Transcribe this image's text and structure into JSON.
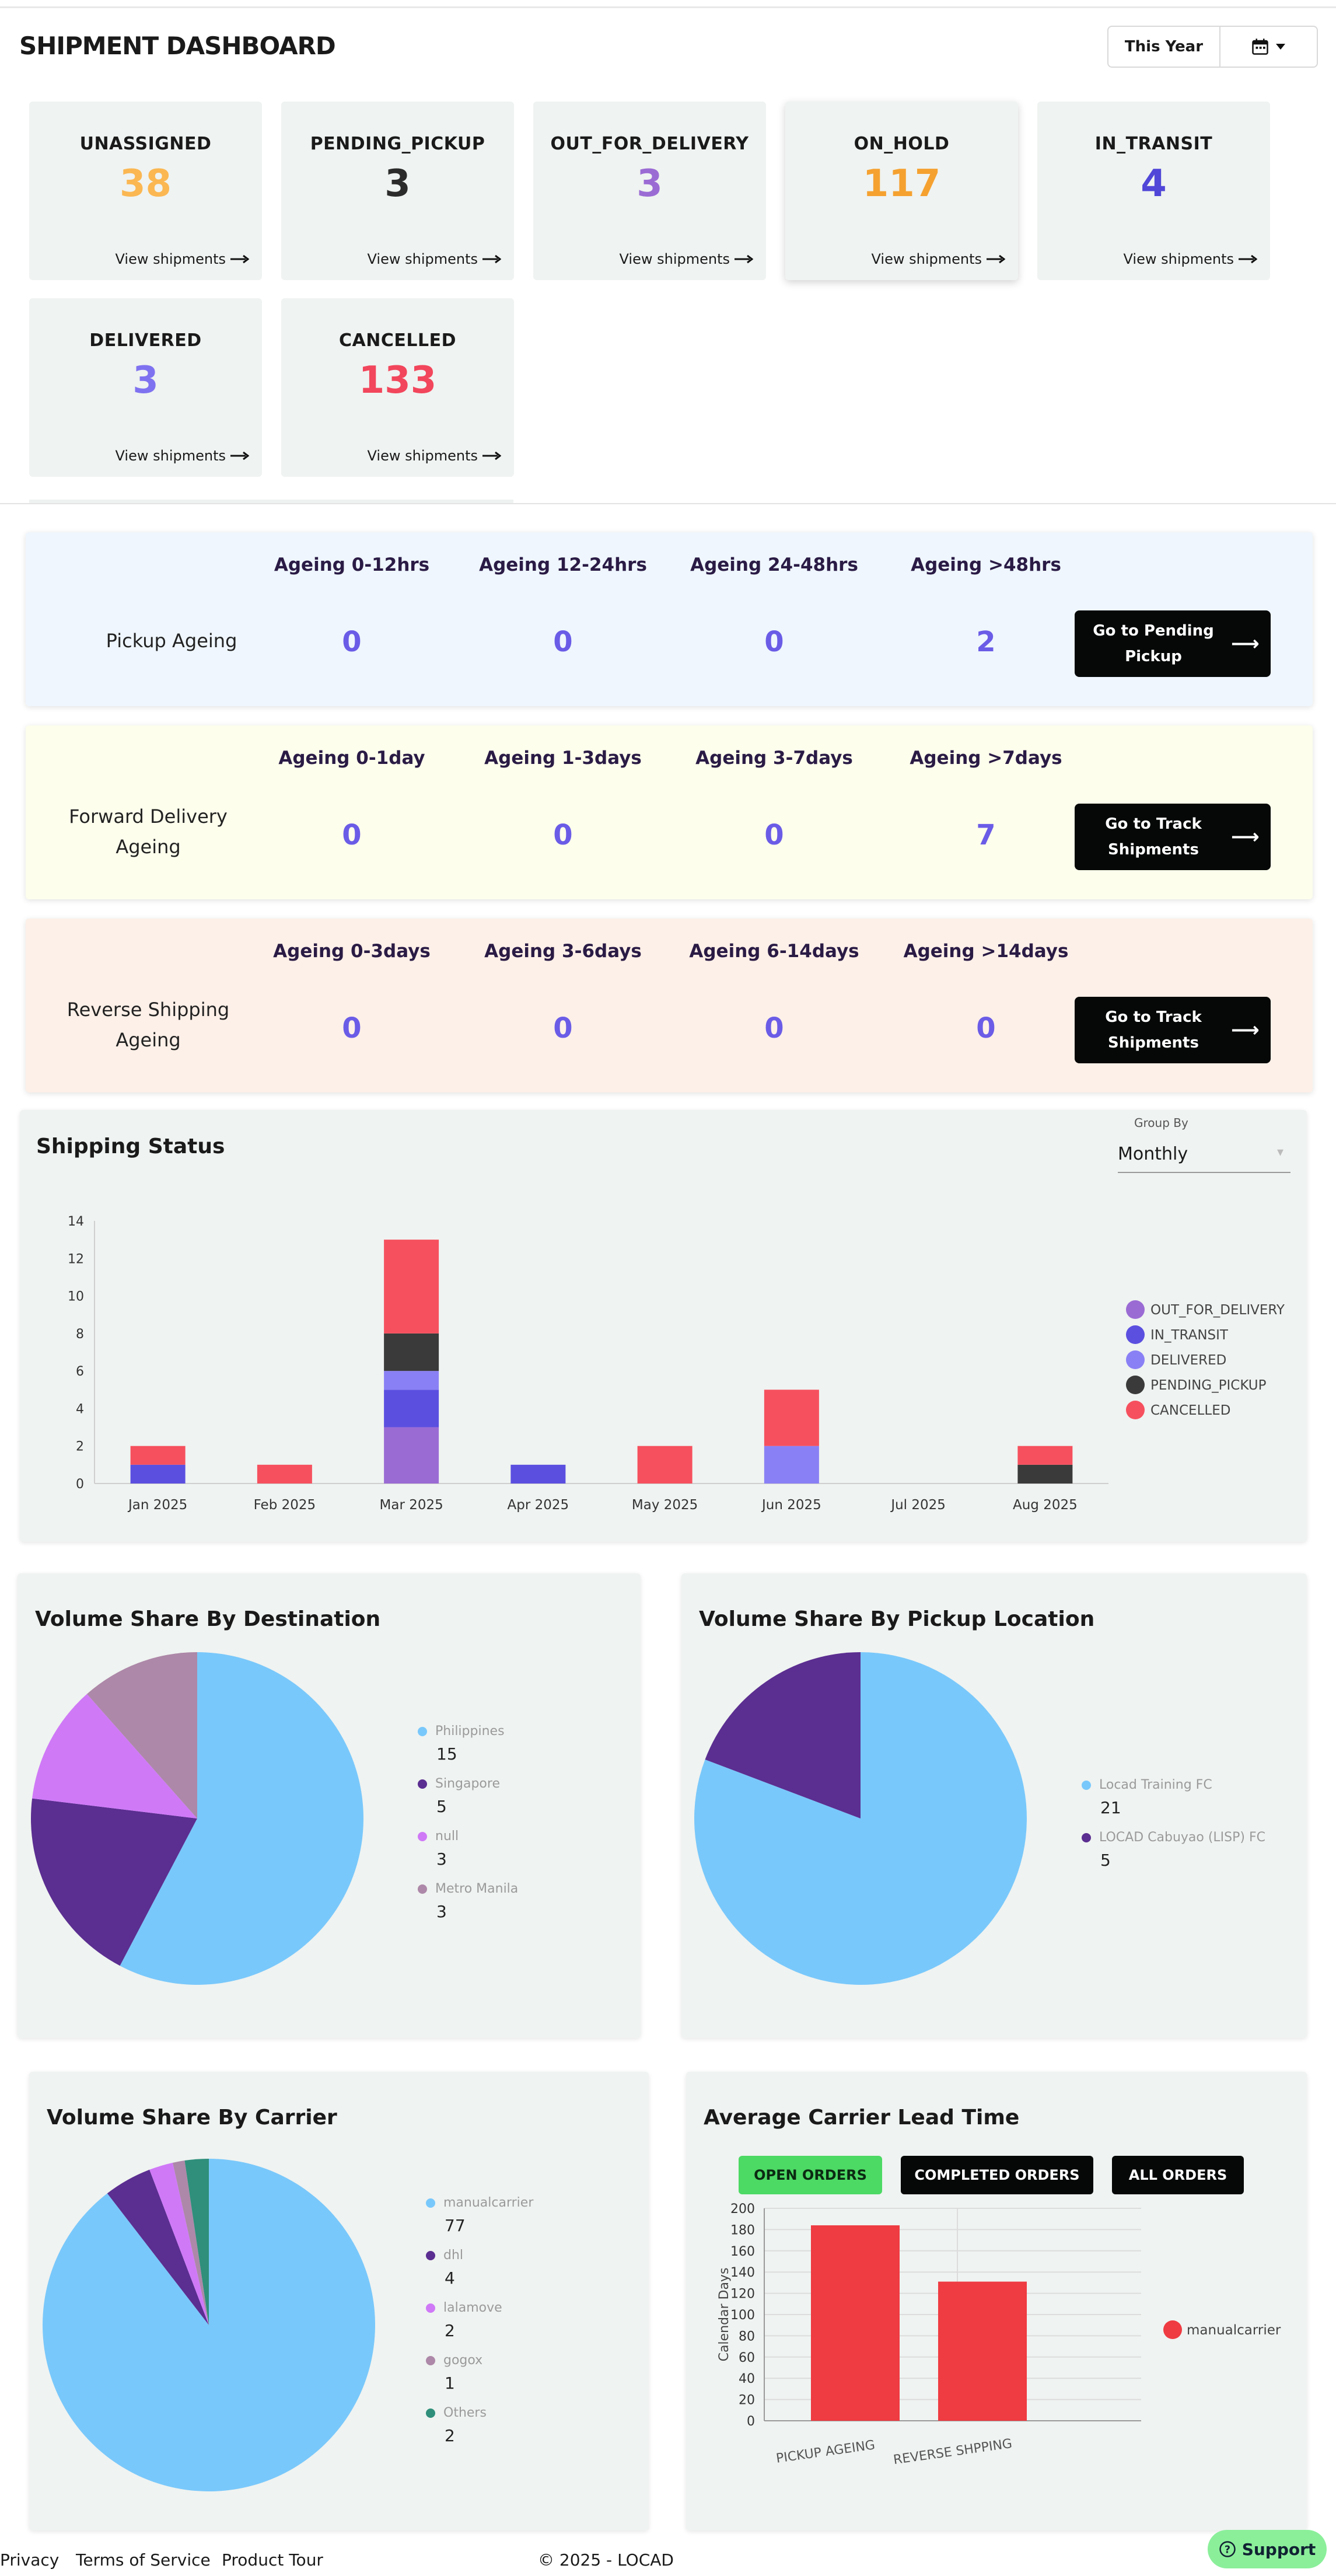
{
  "header": {
    "title": "SHIPMENT DASHBOARD",
    "year_label": "This Year",
    "calendar_icon": "calendar-icon",
    "chevron_icon": "chevron-down-icon"
  },
  "status_cards": [
    {
      "label": "UNASSIGNED",
      "value": "38",
      "color": "#fbb752",
      "link": "View shipments"
    },
    {
      "label": "PENDING_PICKUP",
      "value": "3",
      "color": "#2b2b2b",
      "link": "View shipments"
    },
    {
      "label": "OUT_FOR_DELIVERY",
      "value": "3",
      "color": "#9b6bd4",
      "link": "View shipments"
    },
    {
      "label": "ON_HOLD",
      "value": "117",
      "color": "#f5a130",
      "link": "View shipments"
    },
    {
      "label": "IN_TRANSIT",
      "value": "4",
      "color": "#5046d8",
      "link": "View shipments"
    },
    {
      "label": "DELIVERED",
      "value": "3",
      "color": "#7f72f0",
      "link": "View shipments"
    },
    {
      "label": "CANCELLED",
      "value": "133",
      "color": "#f2465c",
      "link": "View shipments"
    }
  ],
  "ageing": [
    {
      "row_label": "Pickup Ageing",
      "bg": "#eff6fd",
      "headers": [
        "Ageing 0-12hrs",
        "Ageing 12-24hrs",
        "Ageing 24-48hrs",
        "Ageing >48hrs"
      ],
      "values": [
        "0",
        "0",
        "0",
        "2"
      ],
      "button": "Go to Pending Pickup"
    },
    {
      "row_label": "Forward Delivery Ageing",
      "bg": "#fdfeec",
      "headers": [
        "Ageing 0-1day",
        "Ageing 1-3days",
        "Ageing 3-7days",
        "Ageing >7days"
      ],
      "values": [
        "0",
        "0",
        "0",
        "7"
      ],
      "button": "Go to Track Shipments"
    },
    {
      "row_label": "Reverse Shipping Ageing",
      "bg": "#fdf0e8",
      "headers": [
        "Ageing 0-3days",
        "Ageing 3-6days",
        "Ageing 6-14days",
        "Ageing >14days"
      ],
      "values": [
        "0",
        "0",
        "0",
        "0"
      ],
      "button": "Go to Track Shipments"
    }
  ],
  "shipping_status": {
    "title": "Shipping Status",
    "group_by_label": "Group By",
    "group_by_value": "Monthly"
  },
  "volume_destination": {
    "title": "Volume Share By Destination"
  },
  "volume_pickup": {
    "title": "Volume Share By Pickup Location"
  },
  "volume_carrier": {
    "title": "Volume Share By Carrier"
  },
  "lead_time": {
    "title": "Average Carrier Lead Time",
    "tabs": [
      "OPEN ORDERS",
      "COMPLETED ORDERS",
      "ALL ORDERS"
    ]
  },
  "chart_data": [
    {
      "type": "bar",
      "stacked": true,
      "title": "Shipping Status",
      "categories": [
        "Jan 2025",
        "Feb 2025",
        "Mar 2025",
        "Apr 2025",
        "May 2025",
        "Jun 2025",
        "Jul 2025",
        "Aug 2025"
      ],
      "ylim": [
        0,
        14
      ],
      "yticks": [
        0,
        2,
        4,
        6,
        8,
        10,
        12,
        14
      ],
      "series": [
        {
          "name": "OUT_FOR_DELIVERY",
          "color": "#9b6bd4",
          "values": [
            0,
            0,
            3,
            0,
            0,
            0,
            0,
            0
          ]
        },
        {
          "name": "IN_TRANSIT",
          "color": "#5b4fe0",
          "values": [
            1,
            0,
            2,
            1,
            0,
            0,
            0,
            0
          ]
        },
        {
          "name": "DELIVERED",
          "color": "#8a80f5",
          "values": [
            0,
            0,
            1,
            0,
            0,
            2,
            0,
            0
          ]
        },
        {
          "name": "PENDING_PICKUP",
          "color": "#3a3a3a",
          "values": [
            0,
            0,
            2,
            0,
            0,
            0,
            0,
            1
          ]
        },
        {
          "name": "CANCELLED",
          "color": "#f6505e",
          "values": [
            1,
            1,
            5,
            0,
            2,
            3,
            0,
            1
          ]
        }
      ],
      "legend": "right"
    },
    {
      "type": "pie",
      "title": "Volume Share By Destination",
      "slices": [
        {
          "label": "Philippines",
          "value": 15,
          "color": "#79c8fb"
        },
        {
          "label": "Singapore",
          "value": 5,
          "color": "#5b2e91"
        },
        {
          "label": "null",
          "value": 3,
          "color": "#cf79f7"
        },
        {
          "label": "Metro Manila",
          "value": 3,
          "color": "#ad88a8"
        }
      ]
    },
    {
      "type": "pie",
      "title": "Volume Share By Pickup Location",
      "slices": [
        {
          "label": "Locad Training FC",
          "value": 21,
          "color": "#79c8fb"
        },
        {
          "label": "LOCAD Cabuyao (LISP) FC",
          "value": 5,
          "color": "#5b2e91"
        }
      ]
    },
    {
      "type": "pie",
      "title": "Volume Share By Carrier",
      "slices": [
        {
          "label": "manualcarrier",
          "value": 77,
          "color": "#79c8fb"
        },
        {
          "label": "dhl",
          "value": 4,
          "color": "#5b2e91"
        },
        {
          "label": "lalamove",
          "value": 2,
          "color": "#cf79f7"
        },
        {
          "label": "gogox",
          "value": 1,
          "color": "#ad88a8"
        },
        {
          "label": "Others",
          "value": 2,
          "color": "#2f8f7b"
        }
      ]
    },
    {
      "type": "bar",
      "title": "Average Carrier Lead Time",
      "categories": [
        "PICKUP AGEING",
        "REVERSE SHPPING"
      ],
      "ylabel": "Calendar Days",
      "ylim": [
        0,
        200
      ],
      "yticks": [
        0,
        20,
        40,
        60,
        80,
        100,
        120,
        140,
        160,
        180,
        200
      ],
      "series": [
        {
          "name": "manualcarrier",
          "color": "#ef3b42",
          "values": [
            184,
            131
          ]
        }
      ],
      "legend": "right"
    }
  ],
  "footer": {
    "links": [
      "Privacy",
      "Terms of Service",
      "Product Tour"
    ],
    "copyright": "© 2025 - LOCAD",
    "support": "Support"
  }
}
